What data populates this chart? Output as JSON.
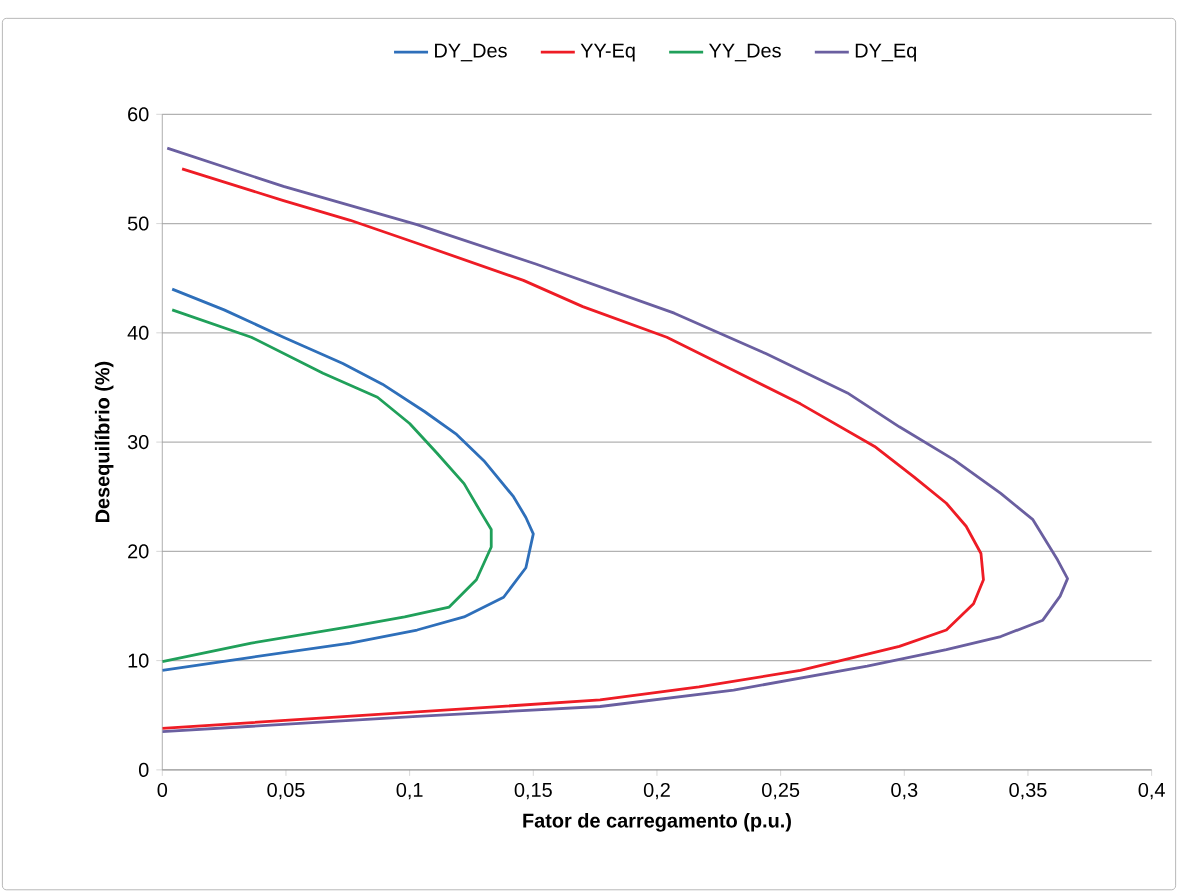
{
  "chart_data": {
    "type": "line",
    "xlabel": "Fator de carregamento (p.u.)",
    "ylabel": "Desequilíbrio (%)",
    "xlim": [
      0,
      0.4
    ],
    "ylim": [
      0,
      60
    ],
    "xticks": [
      0,
      {
        "value": 0.05,
        "label": "0,05"
      },
      {
        "value": 0.1,
        "label": "0,1"
      },
      {
        "value": 0.15,
        "label": "0,15"
      },
      {
        "value": 0.2,
        "label": "0,2"
      },
      {
        "value": 0.25,
        "label": "0,25"
      },
      {
        "value": 0.3,
        "label": "0,3"
      },
      {
        "value": 0.35,
        "label": "0,35"
      },
      {
        "value": 0.4,
        "label": "0,4"
      }
    ],
    "yticks": [
      0,
      10,
      20,
      30,
      40,
      50,
      60
    ],
    "grid": "y",
    "legend": "top",
    "marker": "none",
    "line_style": "solid",
    "series": [
      {
        "name": "DY_Des",
        "color": "#2e6fba",
        "x": [
          0,
          0.036,
          0.076,
          0.103,
          0.122,
          0.138,
          0.147,
          0.15,
          0.147,
          0.142,
          0.13,
          0.119,
          0.106,
          0.089,
          0.073,
          0.049,
          0.025,
          0.004
        ],
        "values": [
          9.1,
          10.3,
          11.6,
          12.8,
          14.0,
          15.8,
          18.5,
          21.6,
          23.1,
          25.0,
          28.3,
          30.7,
          32.8,
          35.3,
          37.2,
          39.6,
          42.1,
          44.0
        ]
      },
      {
        "name": "YY-Eq",
        "color": "#ee1c25",
        "x": [
          0,
          0.103,
          0.177,
          0.217,
          0.258,
          0.298,
          0.317,
          0.328,
          0.332,
          0.331,
          0.325,
          0.317,
          0.304,
          0.288,
          0.258,
          0.228,
          0.204,
          0.17,
          0.146,
          0.103,
          0.076,
          0.049,
          0.008
        ],
        "values": [
          3.8,
          5.3,
          6.4,
          7.6,
          9.1,
          11.3,
          12.8,
          15.2,
          17.4,
          19.8,
          22.3,
          24.4,
          26.8,
          29.6,
          33.5,
          36.9,
          39.6,
          42.4,
          44.8,
          48.2,
          50.3,
          52.1,
          55.0
        ]
      },
      {
        "name": "YY_Des",
        "color": "#20a05a",
        "x": [
          0,
          0.036,
          0.076,
          0.098,
          0.116,
          0.127,
          0.133,
          0.133,
          0.129,
          0.122,
          0.111,
          0.1,
          0.087,
          0.065,
          0.036,
          0.004
        ],
        "values": [
          9.9,
          11.6,
          13.1,
          14.0,
          14.9,
          17.4,
          20.4,
          22.0,
          23.5,
          26.2,
          29.0,
          31.7,
          34.1,
          36.3,
          39.6,
          42.1
        ]
      },
      {
        "name": "DY_Eq",
        "color": "#6a5fa0",
        "x": [
          0,
          0.103,
          0.177,
          0.231,
          0.285,
          0.317,
          0.339,
          0.356,
          0.363,
          0.366,
          0.362,
          0.352,
          0.339,
          0.32,
          0.298,
          0.277,
          0.244,
          0.207,
          0.151,
          0.103,
          0.049,
          0.002
        ],
        "values": [
          3.5,
          4.9,
          5.8,
          7.3,
          9.5,
          11.0,
          12.2,
          13.7,
          15.9,
          17.5,
          19.2,
          22.9,
          25.3,
          28.4,
          31.4,
          34.5,
          38.1,
          41.8,
          46.3,
          49.9,
          53.4,
          56.9
        ]
      }
    ]
  }
}
